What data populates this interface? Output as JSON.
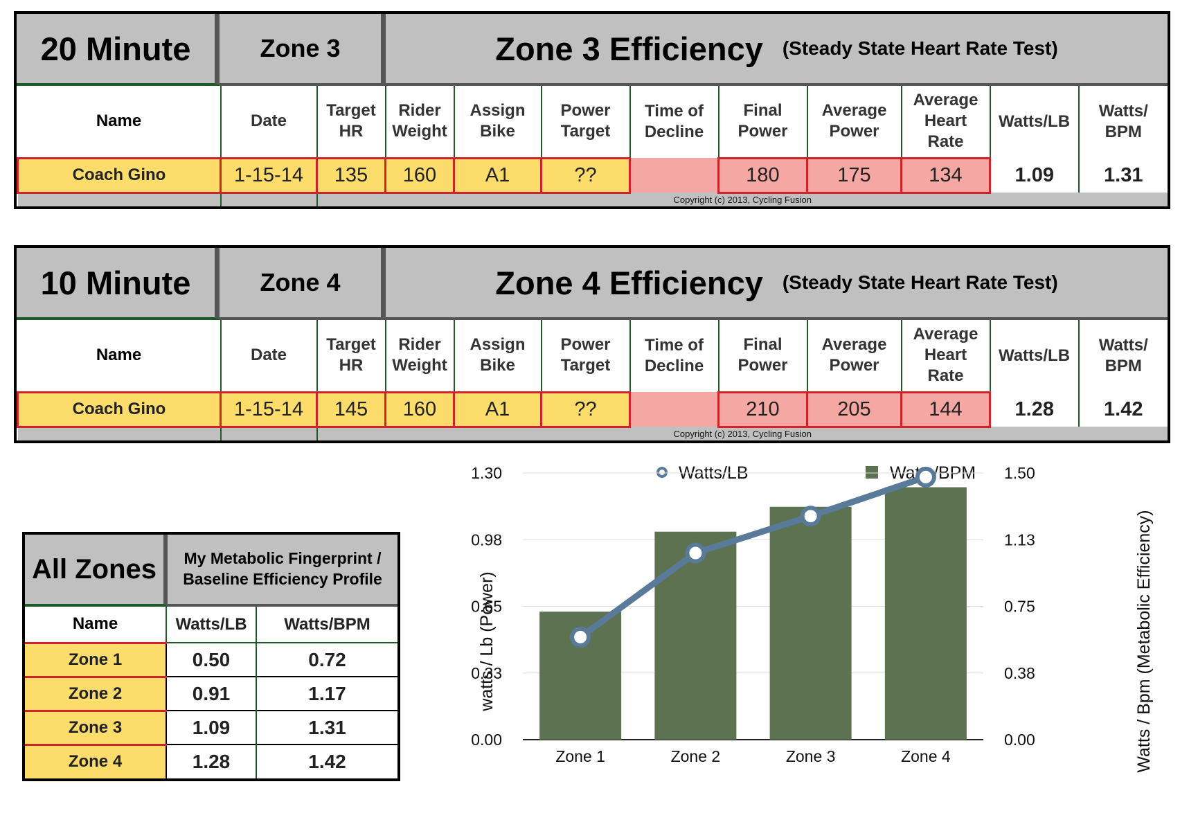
{
  "test20": {
    "duration": "20 Minute",
    "zone": "Zone 3",
    "title": "Zone 3 Efficiency",
    "subtitle": "(Steady State Heart Rate Test)",
    "headers": [
      "Name",
      "Date",
      "Target\nHR",
      "Rider\nWeight",
      "Assign\nBike",
      "Power\nTarget",
      "Time of\nDecline",
      "Final\nPower",
      "Average\nPower",
      "Average\nHeart\nRate",
      "Watts/LB",
      "Watts/\nBPM"
    ],
    "row": {
      "name": "Coach Gino",
      "date": "1-15-14",
      "target_hr": "135",
      "rider_weight": "160",
      "assign_bike": "A1",
      "power_target": "??",
      "time_of_decline": "",
      "final_power": "180",
      "average_power": "175",
      "average_hr": "134",
      "watts_lb": "1.09",
      "watts_bpm": "1.31"
    },
    "copyright": "Copyright (c) 2013, Cycling Fusion"
  },
  "test10": {
    "duration": "10 Minute",
    "zone": "Zone 4",
    "title": "Zone 4 Efficiency",
    "subtitle": "(Steady State Heart Rate Test)",
    "headers": [
      "Name",
      "Date",
      "Target\nHR",
      "Rider\nWeight",
      "Assign\nBike",
      "Power\nTarget",
      "Time of\nDecline",
      "Final\nPower",
      "Average\nPower",
      "Average\nHeart\nRate",
      "Watts/LB",
      "Watts/\nBPM"
    ],
    "row": {
      "name": "Coach Gino",
      "date": "1-15-14",
      "target_hr": "145",
      "rider_weight": "160",
      "assign_bike": "A1",
      "power_target": "??",
      "time_of_decline": "",
      "final_power": "210",
      "average_power": "205",
      "average_hr": "144",
      "watts_lb": "1.28",
      "watts_bpm": "1.42"
    },
    "copyright": "Copyright (c) 2013, Cycling Fusion"
  },
  "all_zones": {
    "title": "All Zones",
    "subtitle": "My Metabolic Fingerprint / Baseline Efficiency Profile",
    "headers": [
      "Name",
      "Watts/LB",
      "Watts/BPM"
    ],
    "rows": [
      {
        "name": "Zone 1",
        "watts_lb": "0.50",
        "watts_bpm": "0.72"
      },
      {
        "name": "Zone 2",
        "watts_lb": "0.91",
        "watts_bpm": "1.17"
      },
      {
        "name": "Zone 3",
        "watts_lb": "1.09",
        "watts_bpm": "1.31"
      },
      {
        "name": "Zone 4",
        "watts_lb": "1.28",
        "watts_bpm": "1.42"
      }
    ]
  },
  "chart_data": {
    "type": "bar",
    "categories": [
      "Zone 1",
      "Zone 2",
      "Zone 3",
      "Zone 4"
    ],
    "series": [
      {
        "name": "Watts/LB",
        "kind": "line",
        "axis": "left",
        "values": [
          0.5,
          0.91,
          1.09,
          1.28
        ],
        "color": "#5a7a99"
      },
      {
        "name": "Watts/BPM",
        "kind": "bar",
        "axis": "right",
        "values": [
          0.72,
          1.17,
          1.31,
          1.42
        ],
        "color": "#5c7250"
      }
    ],
    "ylabel_left": "watts / Lb (Power)",
    "ylabel_right": "Watts / Bpm (Metabolic Efficiency)",
    "ylim_left": [
      0,
      1.3
    ],
    "ylim_right": [
      0,
      1.5
    ],
    "yticks_left": [
      "0.00",
      "0.33",
      "0.65",
      "0.98",
      "1.30"
    ],
    "yticks_right": [
      "0.00",
      "0.38",
      "0.75",
      "1.13",
      "1.50"
    ],
    "grid": true,
    "legend": "top"
  }
}
